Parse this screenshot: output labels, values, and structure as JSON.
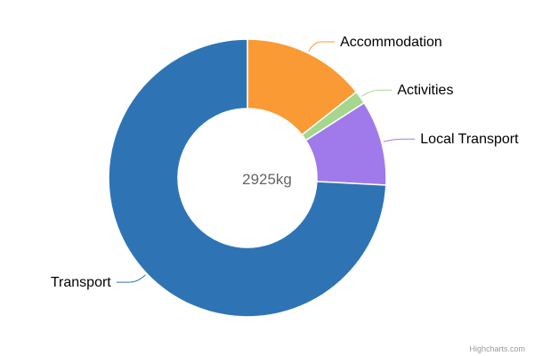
{
  "chart_data": {
    "type": "pie",
    "subtype": "donut",
    "center_label": "2925kg",
    "categories": [
      "Accommodation",
      "Activities",
      "Local Transport",
      "Transport"
    ],
    "values": [
      420,
      45,
      290,
      2170
    ],
    "colors": [
      "#F99A34",
      "#A6D68E",
      "#A07AEB",
      "#2E74B5"
    ],
    "legend": "none",
    "data_labels": "outside with connectors"
  },
  "credits": "Highcharts.com"
}
